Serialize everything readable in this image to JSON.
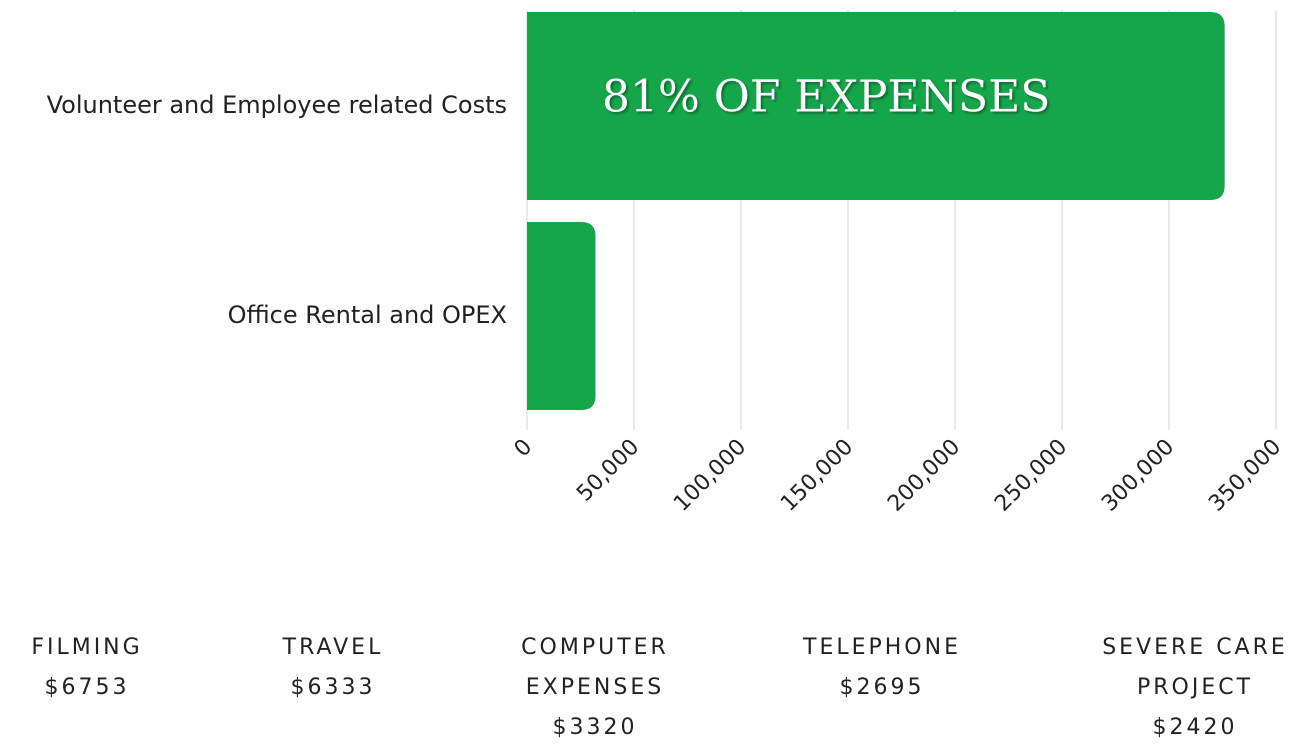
{
  "chart_data": {
    "type": "barh",
    "categories": [
      "Volunteer and  Employee related Costs",
      "Office  Rental and OPEX"
    ],
    "values": [
      326000,
      32000
    ],
    "color": "#15a64b",
    "annotation": "81% OF EXPENSES",
    "xlim": [
      0,
      350000
    ],
    "xticks": [
      0,
      {
        "value": 50000,
        "label": "50,000"
      },
      {
        "value": 100000,
        "label": "100,000"
      },
      {
        "value": 150000,
        "label": "150,000"
      },
      {
        "value": 200000,
        "label": "200,000"
      },
      {
        "value": 250000,
        "label": "250,000"
      },
      {
        "value": 300000,
        "label": "300,000"
      },
      {
        "value": 350000,
        "label": "350,000"
      }
    ],
    "grid": true
  },
  "items": [
    {
      "name": "FILMING",
      "amount": "$6753"
    },
    {
      "name": "TRAVEL",
      "amount": "$6333"
    },
    {
      "name": "COMPUTER EXPENSES",
      "amount": "$3320"
    },
    {
      "name": "TELEPHONE",
      "amount": "$2695"
    },
    {
      "name": "SEVERE CARE PROJECT",
      "amount": "$2420"
    }
  ]
}
